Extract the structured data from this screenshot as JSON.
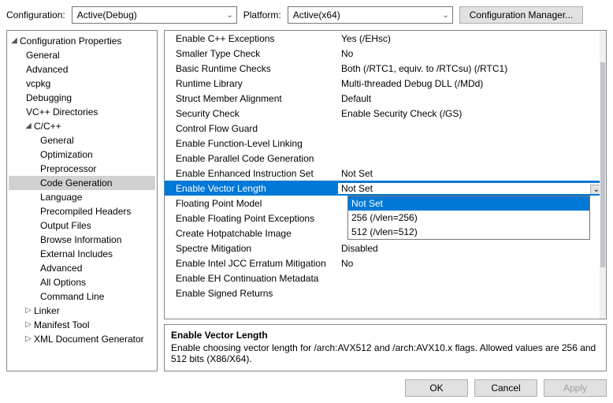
{
  "topBar": {
    "configLabel": "Configuration:",
    "configValue": "Active(Debug)",
    "platformLabel": "Platform:",
    "platformValue": "Active(x64)",
    "configMgrLabel": "Configuration Manager..."
  },
  "tree": [
    {
      "label": "Configuration Properties",
      "level": 0,
      "expanded": true,
      "hasChildren": true
    },
    {
      "label": "General",
      "level": 1
    },
    {
      "label": "Advanced",
      "level": 1
    },
    {
      "label": "vcpkg",
      "level": 1
    },
    {
      "label": "Debugging",
      "level": 1
    },
    {
      "label": "VC++ Directories",
      "level": 1
    },
    {
      "label": "C/C++",
      "level": 1,
      "expanded": true,
      "hasChildren": true
    },
    {
      "label": "General",
      "level": 2
    },
    {
      "label": "Optimization",
      "level": 2
    },
    {
      "label": "Preprocessor",
      "level": 2
    },
    {
      "label": "Code Generation",
      "level": 2,
      "selected": true
    },
    {
      "label": "Language",
      "level": 2
    },
    {
      "label": "Precompiled Headers",
      "level": 2
    },
    {
      "label": "Output Files",
      "level": 2
    },
    {
      "label": "Browse Information",
      "level": 2
    },
    {
      "label": "External Includes",
      "level": 2
    },
    {
      "label": "Advanced",
      "level": 2
    },
    {
      "label": "All Options",
      "level": 2
    },
    {
      "label": "Command Line",
      "level": 2
    },
    {
      "label": "Linker",
      "level": 1,
      "expanded": false,
      "hasChildren": true
    },
    {
      "label": "Manifest Tool",
      "level": 1,
      "expanded": false,
      "hasChildren": true
    },
    {
      "label": "XML Document Generator",
      "level": 1,
      "expanded": false,
      "hasChildren": true
    }
  ],
  "grid": [
    {
      "name": "Enable C++ Exceptions",
      "value": "Yes (/EHsc)"
    },
    {
      "name": "Smaller Type Check",
      "value": "No"
    },
    {
      "name": "Basic Runtime Checks",
      "value": "Both (/RTC1, equiv. to /RTCsu) (/RTC1)"
    },
    {
      "name": "Runtime Library",
      "value": "Multi-threaded Debug DLL (/MDd)"
    },
    {
      "name": "Struct Member Alignment",
      "value": "Default"
    },
    {
      "name": "Security Check",
      "value": "Enable Security Check (/GS)"
    },
    {
      "name": "Control Flow Guard",
      "value": ""
    },
    {
      "name": "Enable Function-Level Linking",
      "value": ""
    },
    {
      "name": "Enable Parallel Code Generation",
      "value": ""
    },
    {
      "name": "Enable Enhanced Instruction Set",
      "value": "Not Set"
    },
    {
      "name": "Enable Vector Length",
      "value": "Not Set",
      "selected": true
    },
    {
      "name": "Floating Point Model",
      "value": ""
    },
    {
      "name": "Enable Floating Point Exceptions",
      "value": ""
    },
    {
      "name": "Create Hotpatchable Image",
      "value": ""
    },
    {
      "name": "Spectre Mitigation",
      "value": "Disabled"
    },
    {
      "name": "Enable Intel JCC Erratum Mitigation",
      "value": "No"
    },
    {
      "name": "Enable EH Continuation Metadata",
      "value": ""
    },
    {
      "name": "Enable Signed Returns",
      "value": ""
    }
  ],
  "dropdown": {
    "options": [
      {
        "label": "Not Set",
        "selected": true
      },
      {
        "label": "256 (/vlen=256)"
      },
      {
        "label": "512 (/vlen=512)"
      }
    ]
  },
  "description": {
    "title": "Enable Vector Length",
    "body": "Enable choosing vector length for /arch:AVX512 and /arch:AVX10.x flags. Allowed values are 256 and 512 bits (X86/X64)."
  },
  "footer": {
    "ok": "OK",
    "cancel": "Cancel",
    "apply": "Apply"
  },
  "glyphs": {
    "expanded": "◢",
    "collapsed": "▷",
    "comboArrow": "⌄",
    "ddArrow": "⌄"
  }
}
